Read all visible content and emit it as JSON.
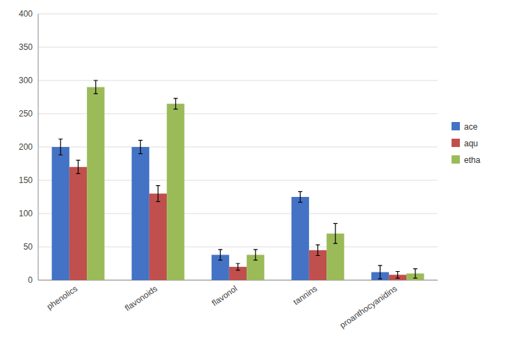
{
  "chart_data": {
    "type": "bar",
    "categories": [
      "phenolics",
      "flavonoids",
      "flavonol",
      "tannins",
      "proanthocyanidins"
    ],
    "series": [
      {
        "name": "ace",
        "color": "#4472C4",
        "values": [
          200,
          200,
          38,
          125,
          12
        ],
        "errors": [
          12,
          10,
          8,
          8,
          10
        ]
      },
      {
        "name": "aqu",
        "color": "#C0504D",
        "values": [
          170,
          130,
          20,
          45,
          8
        ],
        "errors": [
          10,
          12,
          5,
          8,
          5
        ]
      },
      {
        "name": "etha",
        "color": "#9BBB59",
        "values": [
          290,
          265,
          38,
          70,
          10
        ],
        "errors": [
          10,
          8,
          8,
          15,
          7
        ]
      }
    ],
    "ylim": [
      0,
      400
    ],
    "yticks": [
      0,
      50,
      100,
      150,
      200,
      250,
      300,
      350,
      400
    ],
    "grid": true,
    "legend": "right"
  }
}
